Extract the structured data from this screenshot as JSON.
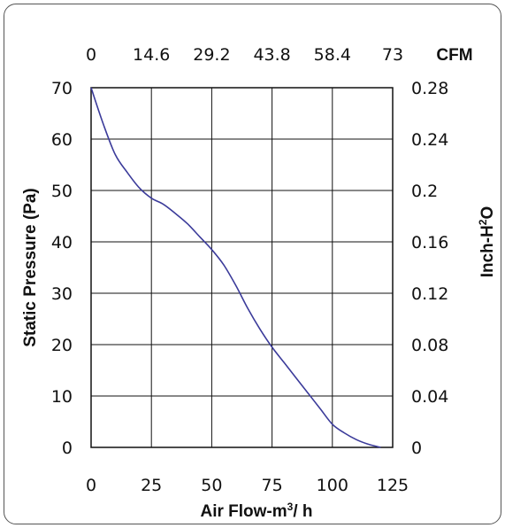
{
  "chart_data": {
    "type": "line",
    "title": "",
    "xlabel": "Air Flow-m³/ h",
    "ylabel": "Static Pressure (Pa)",
    "x2label": "CFM",
    "y2label": "Inch-H²O",
    "xlim": [
      0,
      125
    ],
    "ylim": [
      0,
      70
    ],
    "x2lim": [
      0,
      73
    ],
    "y2lim": [
      0,
      0.28
    ],
    "grid": true,
    "legend": "none",
    "x_ticks": [
      "0",
      "25",
      "50",
      "75",
      "100",
      "125"
    ],
    "y_ticks": [
      "0",
      "10",
      "20",
      "30",
      "40",
      "50",
      "60",
      "70"
    ],
    "x2_ticks": [
      "0",
      "14.6",
      "29.2",
      "43.8",
      "58.4",
      "73"
    ],
    "y2_ticks": [
      "0",
      "0.04",
      "0.08",
      "0.12",
      "0.16",
      "0.2",
      "0.24",
      "0.28"
    ],
    "series": [
      {
        "color": "#3b3b9a",
        "x": [
          0,
          5,
          10,
          15,
          20,
          25,
          30,
          35,
          40,
          45,
          50,
          55,
          60,
          65,
          70,
          75,
          80,
          85,
          90,
          95,
          100,
          105,
          110,
          115,
          120
        ],
        "y": [
          70,
          63,
          57,
          53.5,
          50.5,
          48.5,
          47.3,
          45.5,
          43.5,
          41,
          38.5,
          35.5,
          31.5,
          27,
          23,
          19.5,
          16.5,
          13.5,
          10.5,
          7.5,
          4.5,
          2.8,
          1.5,
          0.6,
          0
        ]
      }
    ]
  }
}
